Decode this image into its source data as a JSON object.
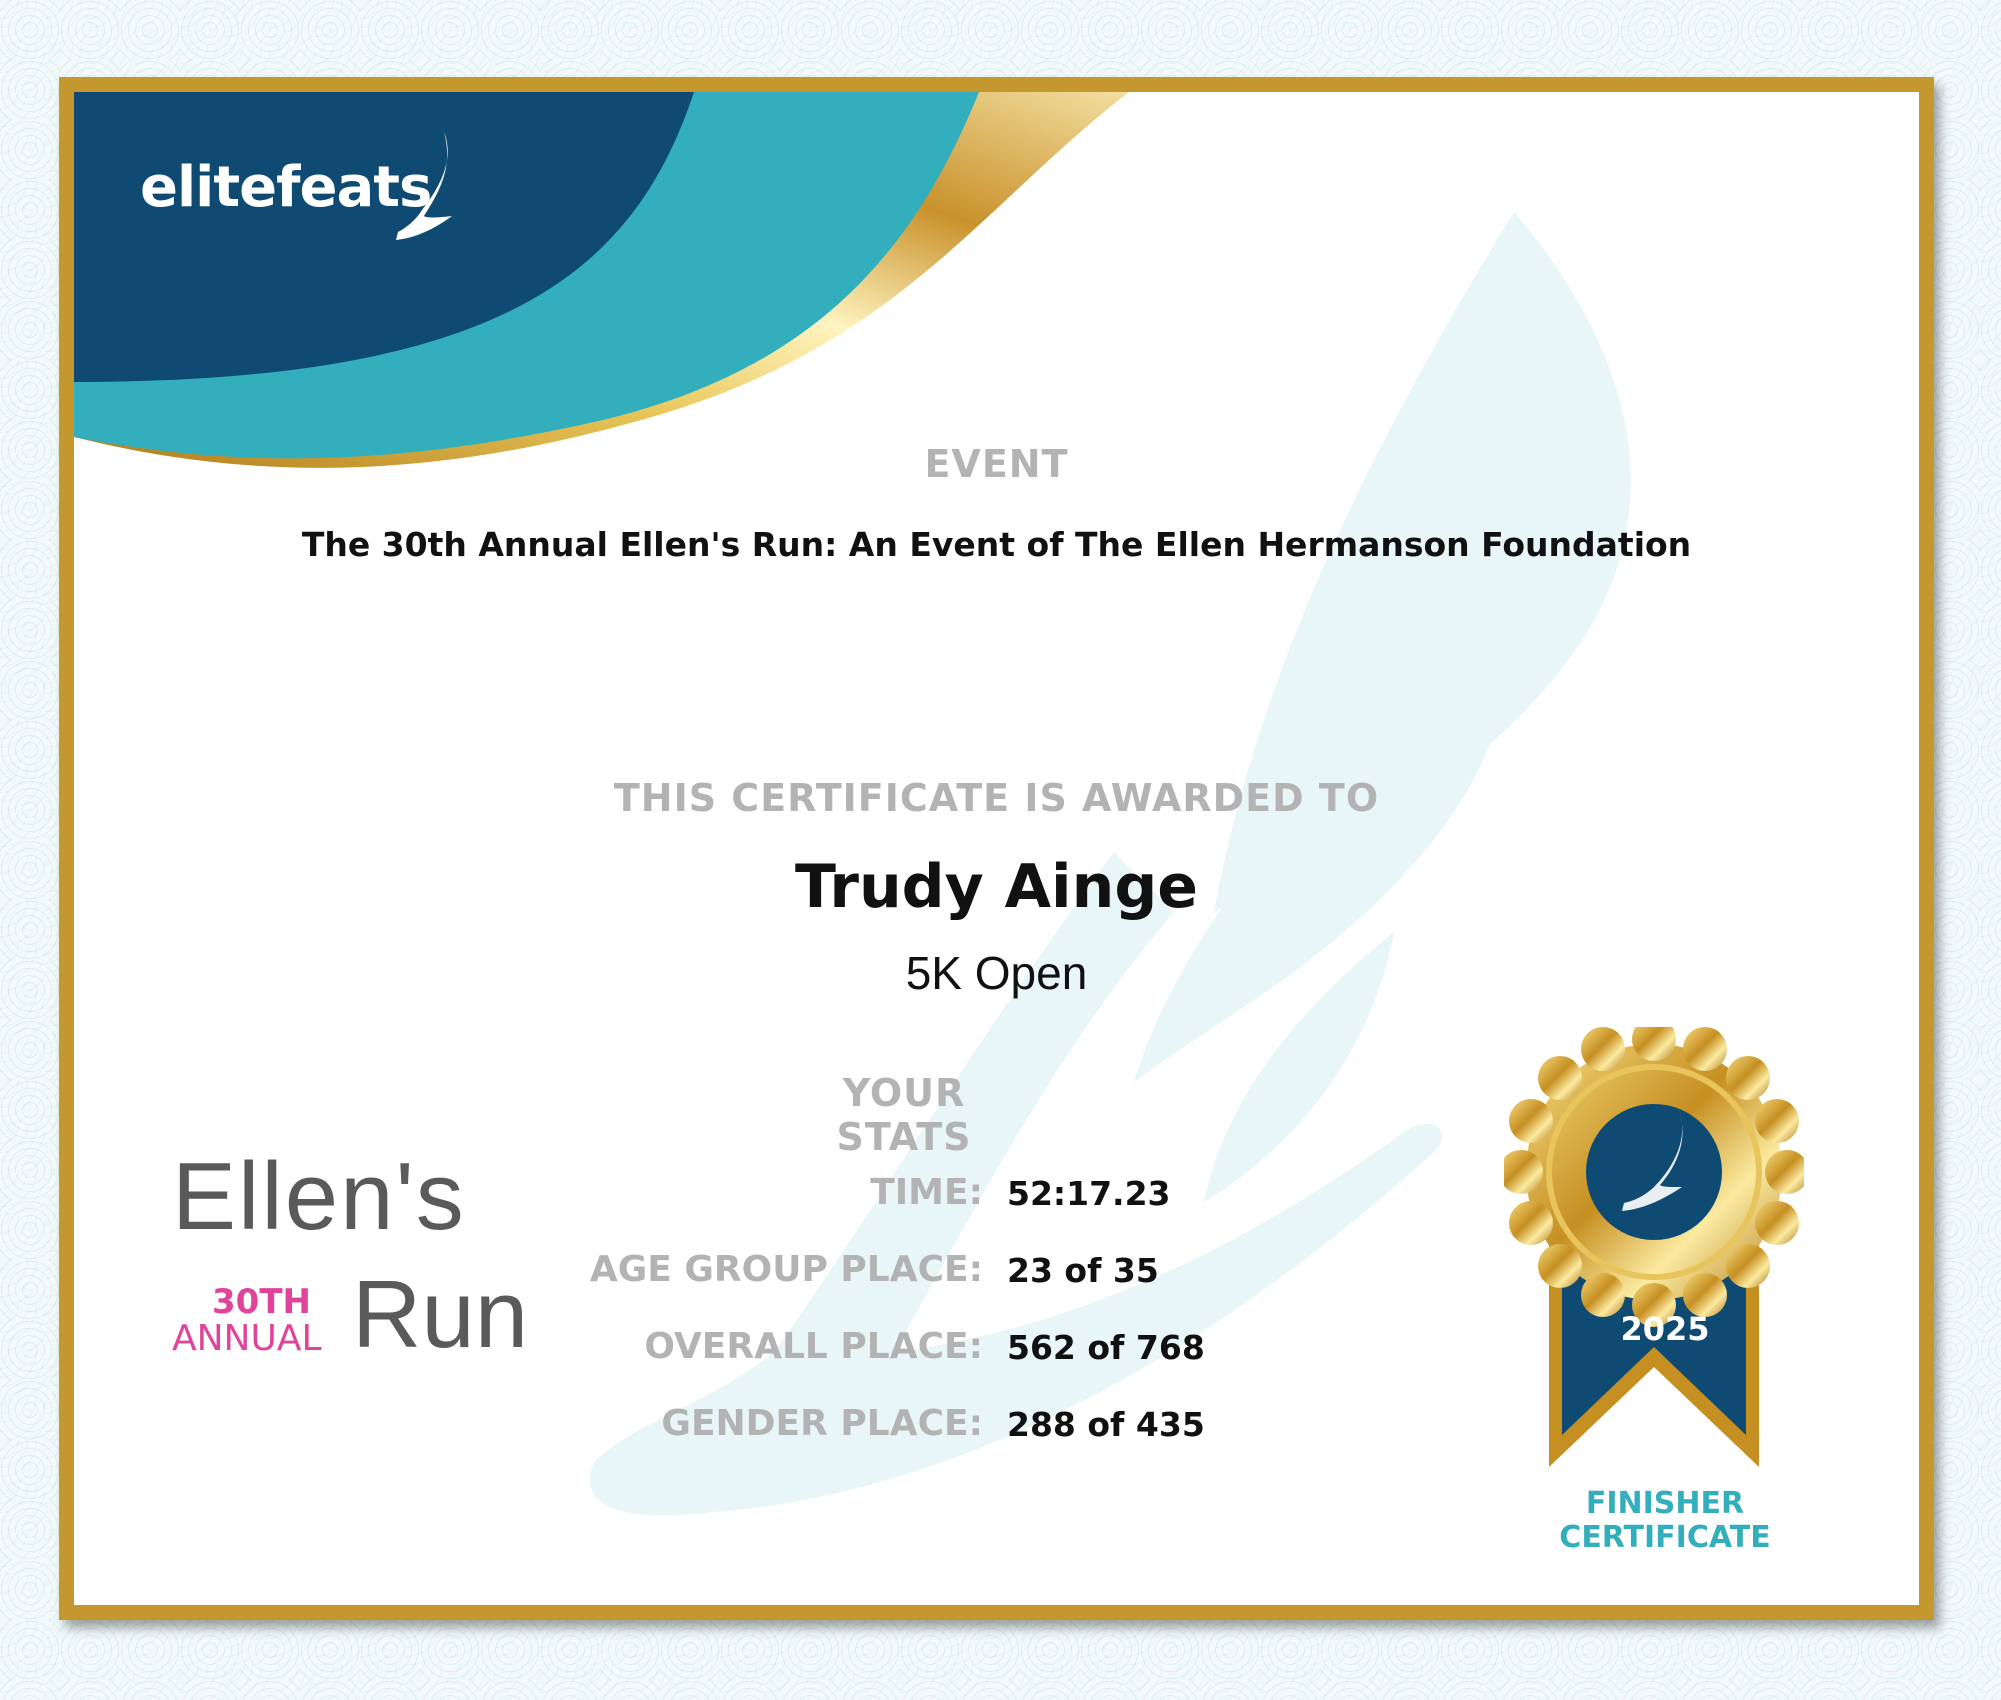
{
  "brand": {
    "logo_text": "elitefeats",
    "colors": {
      "navy": "#0f4a73",
      "teal": "#33aebd",
      "gold": "#c4982f",
      "pink": "#e0449a",
      "gray": "#5a5a5a"
    }
  },
  "event": {
    "label": "EVENT",
    "title": "The 30th Annual Ellen's Run: An Event of The Ellen Hermanson Foundation"
  },
  "award": {
    "label": "THIS CERTIFICATE IS AWARDED TO",
    "name": "Trudy Ainge",
    "division": "5K Open"
  },
  "stats": {
    "label": "YOUR STATS",
    "rows": [
      {
        "key": "TIME:",
        "value": "52:17.23"
      },
      {
        "key": "AGE GROUP PLACE:",
        "value": "23 of 35"
      },
      {
        "key": "OVERALL PLACE:",
        "value": "562 of 768"
      },
      {
        "key": "GENDER PLACE:",
        "value": "288 of 435"
      }
    ]
  },
  "event_logo": {
    "line1": "Ellen's",
    "ordinal": "30TH",
    "annual": "ANNUAL",
    "run": "Run"
  },
  "medal": {
    "year": "2025",
    "caption_line1": "FINISHER",
    "caption_line2": "CERTIFICATE",
    "icon": "winged-shoe-icon"
  }
}
